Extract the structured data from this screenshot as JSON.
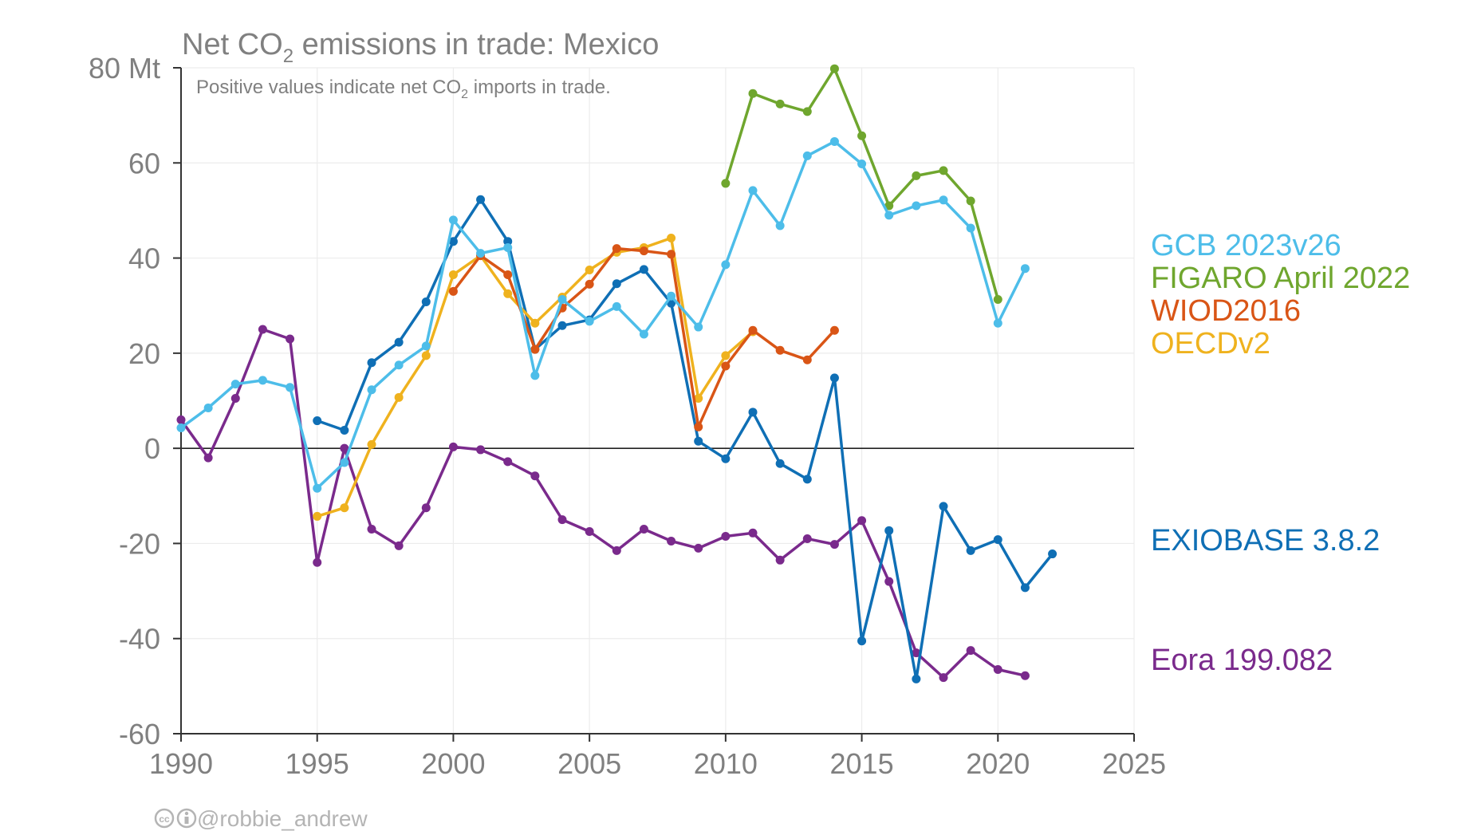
{
  "chart_data": {
    "type": "line",
    "title": "Net CO",
    "title_sub": "2",
    "title_rest": " emissions in trade: Mexico",
    "subtitle": "Positive values indicate net CO",
    "subtitle_sub": "2",
    "subtitle_rest": " imports in trade.",
    "y_unit": "Mt",
    "xlim": [
      1990,
      2025
    ],
    "ylim": [
      -60,
      80
    ],
    "x_ticks": [
      1990,
      1995,
      2000,
      2005,
      2010,
      2015,
      2020,
      2025
    ],
    "y_ticks": [
      -60,
      -40,
      -20,
      0,
      20,
      40,
      60,
      80
    ],
    "grid": true,
    "legend_placement": "right",
    "credit": "@robbie_andrew",
    "series": [
      {
        "name": "Eora 199.082",
        "color": "#7a2a8c",
        "x": [
          1990,
          1991,
          1992,
          1993,
          1994,
          1995,
          1996,
          1997,
          1998,
          1999,
          2000,
          2001,
          2002,
          2003,
          2004,
          2005,
          2006,
          2007,
          2008,
          2009,
          2010,
          2011,
          2012,
          2013,
          2014,
          2015,
          2016,
          2017,
          2018,
          2019,
          2020,
          2021
        ],
        "y": [
          6,
          -2,
          10.5,
          25,
          23,
          -24,
          0,
          -17,
          -20.5,
          -12.5,
          0.3,
          -0.3,
          -2.8,
          -5.8,
          -15,
          -17.5,
          -21.5,
          -17,
          -19.5,
          -21,
          -18.5,
          -17.8,
          -23.5,
          -19,
          -20.2,
          -15.2,
          -28,
          -43,
          -48.2,
          -42.5,
          -46.5,
          -47.8
        ]
      },
      {
        "name": "EXIOBASE 3.8.2",
        "color": "#0f6fb5",
        "x": [
          1995,
          1996,
          1997,
          1998,
          1999,
          2000,
          2001,
          2002,
          2003,
          2004,
          2005,
          2006,
          2007,
          2008,
          2009,
          2010,
          2011,
          2012,
          2013,
          2014,
          2015,
          2016,
          2017,
          2018,
          2019,
          2020,
          2021,
          2022
        ],
        "y": [
          5.8,
          3.8,
          18,
          22.3,
          30.8,
          43.5,
          52.3,
          43.5,
          20.8,
          25.8,
          27,
          34.6,
          37.6,
          30.5,
          1.5,
          -2.2,
          7.6,
          -3.2,
          -6.5,
          14.8,
          -40.5,
          -17.3,
          -48.5,
          -12.2,
          -21.5,
          -19.2,
          -29.3,
          -22.2
        ]
      },
      {
        "name": "OECDv2",
        "color": "#efb21e",
        "x": [
          1995,
          1996,
          1997,
          1998,
          1999,
          2000,
          2001,
          2002,
          2003,
          2004,
          2005,
          2006,
          2007,
          2008,
          2009,
          2010,
          2011
        ],
        "y": [
          -14.3,
          -12.5,
          0.8,
          10.7,
          19.5,
          36.5,
          40.5,
          32.5,
          26.3,
          31.8,
          37.5,
          41.2,
          42.2,
          44.2,
          10.5,
          19.5,
          24.5
        ]
      },
      {
        "name": "WIOD2016",
        "color": "#d95516",
        "x": [
          2000,
          2001,
          2002,
          2003,
          2004,
          2005,
          2006,
          2007,
          2008,
          2009,
          2010,
          2011,
          2012,
          2013,
          2014
        ],
        "y": [
          33,
          40.5,
          36.5,
          20.8,
          29.5,
          34.5,
          42,
          41.5,
          40.8,
          4.5,
          17.3,
          24.8,
          20.6,
          18.6,
          24.8
        ]
      },
      {
        "name": "FIGARO April 2022",
        "color": "#6fa62e",
        "x": [
          2010,
          2011,
          2012,
          2013,
          2014,
          2015,
          2016,
          2017,
          2018,
          2019,
          2020
        ],
        "y": [
          55.7,
          74.6,
          72.4,
          70.8,
          79.8,
          65.7,
          51,
          57.3,
          58.4,
          52,
          31.3
        ]
      },
      {
        "name": "GCB 2023v26",
        "color": "#4dbde9",
        "x": [
          1990,
          1991,
          1992,
          1993,
          1994,
          1995,
          1996,
          1997,
          1998,
          1999,
          2000,
          2001,
          2002,
          2003,
          2004,
          2005,
          2006,
          2007,
          2008,
          2009,
          2010,
          2011,
          2012,
          2013,
          2014,
          2015,
          2016,
          2017,
          2018,
          2019,
          2020,
          2021
        ],
        "y": [
          4.3,
          8.5,
          13.5,
          14.3,
          12.8,
          -8.4,
          -3,
          12.3,
          17.5,
          21.5,
          48,
          41,
          42.2,
          15.3,
          31.3,
          26.7,
          29.8,
          24,
          32,
          25.5,
          38.6,
          54.2,
          46.8,
          61.5,
          64.5,
          59.8,
          49,
          51,
          52.2,
          46.3,
          26.3,
          37.8
        ]
      }
    ],
    "legend": [
      {
        "label": "GCB 2023v26",
        "color": "#4dbde9"
      },
      {
        "label": "FIGARO April 2022",
        "color": "#6fa62e"
      },
      {
        "label": "WIOD2016",
        "color": "#d95516"
      },
      {
        "label": "OECDv2",
        "color": "#efb21e"
      },
      {
        "label": "EXIOBASE 3.8.2",
        "color": "#0f6fb5"
      },
      {
        "label": "Eora 199.082",
        "color": "#7a2a8c"
      }
    ]
  }
}
